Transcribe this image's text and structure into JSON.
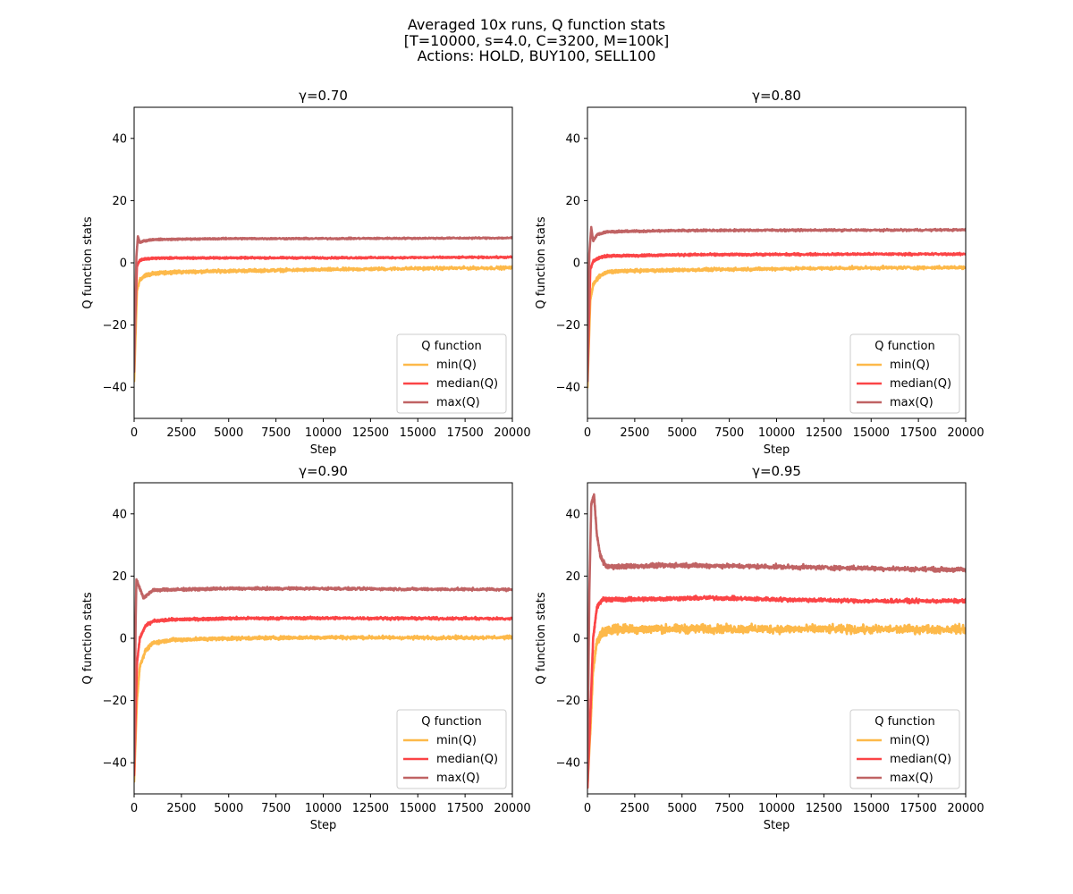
{
  "figure": {
    "title_lines": [
      "Averaged 10x runs, Q function stats",
      "[T=10000, s=4.0, C=3200, M=100k]",
      "Actions: HOLD, BUY100, SELL100"
    ]
  },
  "chart_data": [
    {
      "type": "line",
      "title": "γ=0.70",
      "xlabel": "Step",
      "ylabel": "Q function stats",
      "xlim": [
        0,
        20000
      ],
      "ylim": [
        -50,
        50
      ],
      "xticks": [
        "0",
        "2500",
        "5000",
        "7500",
        "10000",
        "12500",
        "15000",
        "17500",
        "20000"
      ],
      "yticks": [
        "−40",
        "−20",
        "0",
        "20",
        "40"
      ],
      "grid": false,
      "legend": {
        "title": "Q function",
        "placement": "lower-right"
      },
      "series": [
        {
          "name": "min(Q)",
          "color": "#fdb94a",
          "points": [
            [
              0,
              -38
            ],
            [
              150,
              -9
            ],
            [
              300,
              -5.5
            ],
            [
              600,
              -4
            ],
            [
              1000,
              -3.5
            ],
            [
              2000,
              -3
            ],
            [
              5000,
              -2.6
            ],
            [
              10000,
              -2.2
            ],
            [
              15000,
              -1.8
            ],
            [
              20000,
              -1.6
            ]
          ],
          "noise": 0.7
        },
        {
          "name": "median(Q)",
          "color": "#fb4446",
          "points": [
            [
              0,
              -30
            ],
            [
              150,
              -1
            ],
            [
              300,
              0.8
            ],
            [
              600,
              1.3
            ],
            [
              1000,
              1.5
            ],
            [
              5000,
              1.6
            ],
            [
              10000,
              1.6
            ],
            [
              15000,
              1.7
            ],
            [
              20000,
              1.8
            ]
          ],
          "noise": 0.4
        },
        {
          "name": "max(Q)",
          "color": "#c06364",
          "points": [
            [
              0,
              -35
            ],
            [
              120,
              2
            ],
            [
              200,
              8.5
            ],
            [
              300,
              6.5
            ],
            [
              500,
              7
            ],
            [
              1000,
              7.5
            ],
            [
              5000,
              7.8
            ],
            [
              10000,
              7.8
            ],
            [
              15000,
              7.9
            ],
            [
              20000,
              8
            ]
          ],
          "noise": 0.35
        }
      ]
    },
    {
      "type": "line",
      "title": "γ=0.80",
      "xlabel": "Step",
      "ylabel": "Q function stats",
      "xlim": [
        0,
        20000
      ],
      "ylim": [
        -50,
        50
      ],
      "xticks": [
        "0",
        "2500",
        "5000",
        "7500",
        "10000",
        "12500",
        "15000",
        "17500",
        "20000"
      ],
      "yticks": [
        "−40",
        "−20",
        "0",
        "20",
        "40"
      ],
      "grid": false,
      "legend": {
        "title": "Q function",
        "placement": "lower-right"
      },
      "series": [
        {
          "name": "min(Q)",
          "color": "#fdb94a",
          "points": [
            [
              0,
              -40
            ],
            [
              150,
              -12
            ],
            [
              300,
              -7
            ],
            [
              600,
              -4.5
            ],
            [
              1000,
              -3
            ],
            [
              2000,
              -2.6
            ],
            [
              5000,
              -2.3
            ],
            [
              10000,
              -1.9
            ],
            [
              15000,
              -1.6
            ],
            [
              20000,
              -1.5
            ]
          ],
          "noise": 0.7
        },
        {
          "name": "median(Q)",
          "color": "#fb4446",
          "points": [
            [
              0,
              -38
            ],
            [
              150,
              -2
            ],
            [
              300,
              0.5
            ],
            [
              600,
              1.6
            ],
            [
              1000,
              2.2
            ],
            [
              5000,
              2.6
            ],
            [
              10000,
              2.7
            ],
            [
              15000,
              2.8
            ],
            [
              20000,
              2.8
            ]
          ],
          "noise": 0.5
        },
        {
          "name": "max(Q)",
          "color": "#c06364",
          "points": [
            [
              0,
              -38
            ],
            [
              100,
              3
            ],
            [
              200,
              11.5
            ],
            [
              300,
              7
            ],
            [
              500,
              9
            ],
            [
              1000,
              10
            ],
            [
              5000,
              10.4
            ],
            [
              10000,
              10.5
            ],
            [
              15000,
              10.5
            ],
            [
              20000,
              10.6
            ]
          ],
          "noise": 0.45
        }
      ]
    },
    {
      "type": "line",
      "title": "γ=0.90",
      "xlabel": "Step",
      "ylabel": "Q function stats",
      "xlim": [
        0,
        20000
      ],
      "ylim": [
        -50,
        50
      ],
      "xticks": [
        "0",
        "2500",
        "5000",
        "7500",
        "10000",
        "12500",
        "15000",
        "17500",
        "20000"
      ],
      "yticks": [
        "−40",
        "−20",
        "0",
        "20",
        "40"
      ],
      "grid": false,
      "legend": {
        "title": "Q function",
        "placement": "lower-right"
      },
      "series": [
        {
          "name": "min(Q)",
          "color": "#fdb94a",
          "points": [
            [
              0,
              -46
            ],
            [
              150,
              -20
            ],
            [
              300,
              -9
            ],
            [
              600,
              -4
            ],
            [
              1000,
              -1.5
            ],
            [
              2000,
              -0.5
            ],
            [
              5000,
              0
            ],
            [
              10000,
              0.3
            ],
            [
              15000,
              0.2
            ],
            [
              20000,
              0.3
            ]
          ],
          "noise": 0.8
        },
        {
          "name": "median(Q)",
          "color": "#fb4446",
          "points": [
            [
              0,
              -44
            ],
            [
              150,
              -8
            ],
            [
              300,
              0
            ],
            [
              600,
              4
            ],
            [
              1000,
              5.5
            ],
            [
              2000,
              6
            ],
            [
              5000,
              6.4
            ],
            [
              10000,
              6.5
            ],
            [
              15000,
              6.4
            ],
            [
              20000,
              6.3
            ]
          ],
          "noise": 0.6
        },
        {
          "name": "max(Q)",
          "color": "#c06364",
          "points": [
            [
              0,
              -40
            ],
            [
              80,
              5
            ],
            [
              120,
              19
            ],
            [
              300,
              16
            ],
            [
              500,
              13
            ],
            [
              1000,
              15.5
            ],
            [
              5000,
              16
            ],
            [
              10000,
              16
            ],
            [
              15000,
              15.8
            ],
            [
              20000,
              15.7
            ]
          ],
          "noise": 0.6
        }
      ]
    },
    {
      "type": "line",
      "title": "γ=0.95",
      "xlabel": "Step",
      "ylabel": "Q function stats",
      "xlim": [
        0,
        20000
      ],
      "ylim": [
        -50,
        50
      ],
      "xticks": [
        "0",
        "2500",
        "5000",
        "7500",
        "10000",
        "12500",
        "15000",
        "17500",
        "20000"
      ],
      "yticks": [
        "−40",
        "−20",
        "0",
        "20",
        "40"
      ],
      "grid": false,
      "legend": {
        "title": "Q function",
        "placement": "lower-right"
      },
      "series": [
        {
          "name": "min(Q)",
          "color": "#fdb94a",
          "points": [
            [
              0,
              -48
            ],
            [
              150,
              -30
            ],
            [
              300,
              -10
            ],
            [
              500,
              -1
            ],
            [
              800,
              2
            ],
            [
              1500,
              3
            ],
            [
              5000,
              3
            ],
            [
              10000,
              3
            ],
            [
              15000,
              2.8
            ],
            [
              20000,
              3
            ]
          ],
          "noise": 2.0
        },
        {
          "name": "median(Q)",
          "color": "#fb4446",
          "points": [
            [
              0,
              -48
            ],
            [
              150,
              -25
            ],
            [
              300,
              0
            ],
            [
              500,
              10
            ],
            [
              800,
              12.5
            ],
            [
              2000,
              12.5
            ],
            [
              6500,
              13
            ],
            [
              10000,
              12.5
            ],
            [
              15000,
              12
            ],
            [
              20000,
              12
            ]
          ],
          "noise": 0.9
        },
        {
          "name": "max(Q)",
          "color": "#c06364",
          "points": [
            [
              0,
              -45
            ],
            [
              100,
              15
            ],
            [
              200,
              43
            ],
            [
              350,
              46
            ],
            [
              500,
              33
            ],
            [
              700,
              26
            ],
            [
              1000,
              23
            ],
            [
              5000,
              23.5
            ],
            [
              10000,
              23
            ],
            [
              15000,
              22.5
            ],
            [
              20000,
              22
            ]
          ],
          "noise": 1.0
        }
      ]
    }
  ]
}
